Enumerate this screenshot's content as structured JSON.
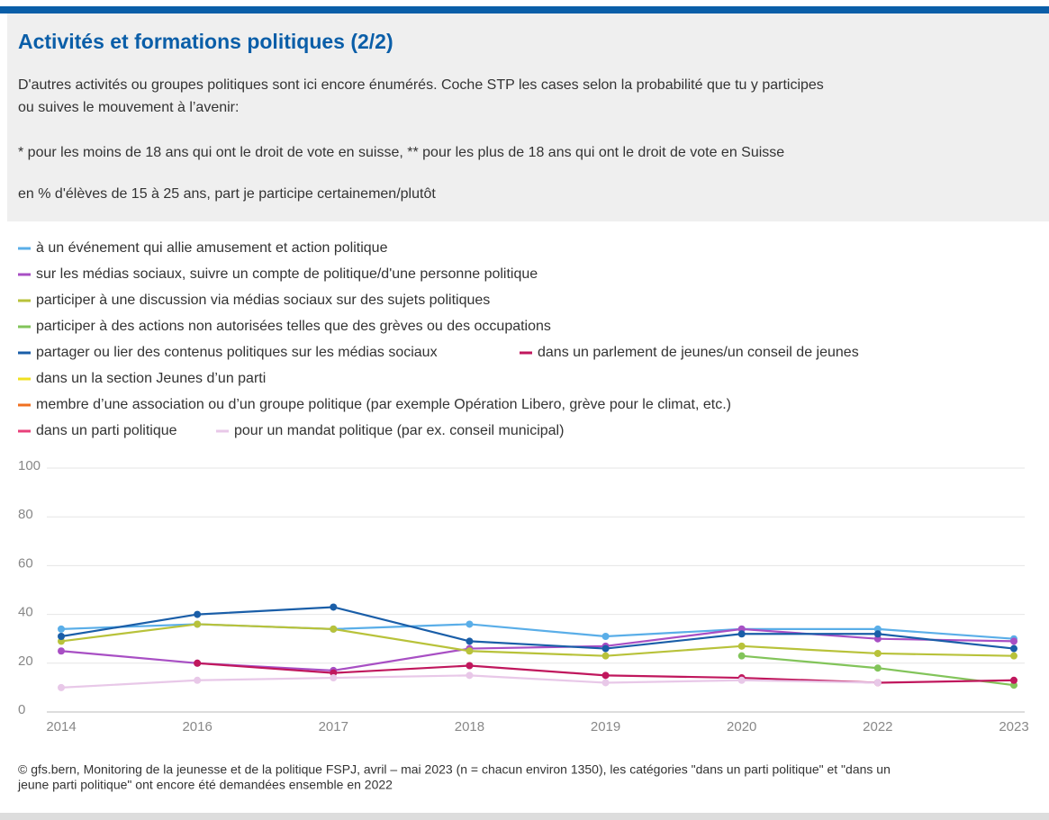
{
  "header": {
    "title": "Activités et formations politiques (2/2)",
    "lines": [
      "D'autres activités ou groupes politiques sont ici encore énumérés. Coche STP les cases selon la probabilité que tu y participes",
      "ou suives le mouvement à l’avenir:",
      "* pour les moins de 18 ans qui ont le droit de vote en suisse, ** pour les plus de 18 ans qui ont le droit de vote en Suisse",
      "en % d'élèves de 15 à 25 ans, part je participe certainemen/plutôt"
    ]
  },
  "chart_data": {
    "type": "line",
    "categories": [
      "2014",
      "2016",
      "2017",
      "2018",
      "2019",
      "2020",
      "2022",
      "2023"
    ],
    "ylim": [
      0,
      100
    ],
    "yticks": [
      0,
      20,
      40,
      60,
      80,
      100
    ],
    "grid": true,
    "series": [
      {
        "name": "à un événement qui allie amusement et action politique",
        "color": "#5aaee8",
        "values": [
          34,
          36,
          34,
          36,
          31,
          34,
          34,
          30
        ]
      },
      {
        "name": "sur les médias sociaux, suivre un compte de politique/d'une personne politique",
        "color": "#a84fc4",
        "values": [
          25,
          20,
          17,
          26,
          27,
          34,
          30,
          29
        ]
      },
      {
        "name": "participer à une discussion via médias sociaux sur des sujets politiques",
        "color": "#b8c23a",
        "values": [
          29,
          36,
          34,
          25,
          23,
          27,
          24,
          23
        ]
      },
      {
        "name": "participer à des actions non autorisées telles que des grèves ou des occupations",
        "color": "#82c45a",
        "values": [
          null,
          null,
          null,
          null,
          null,
          23,
          18,
          11
        ]
      },
      {
        "name": "partager ou lier des contenus politiques sur les médias sociaux",
        "color": "#1a5ea8",
        "values": [
          31,
          40,
          43,
          29,
          26,
          32,
          32,
          26
        ]
      },
      {
        "name": "dans un parlement de jeunes/un conseil de jeunes",
        "color": "#c0175d",
        "values": [
          null,
          20,
          16,
          19,
          15,
          14,
          12,
          13
        ]
      },
      {
        "name": "dans un la section Jeunes d’un parti",
        "color": "#f0e020",
        "values": [
          null,
          null,
          null,
          null,
          null,
          null,
          null,
          null
        ]
      },
      {
        "name": "membre d’une association ou d’un groupe politique (par exemple Opération Libero, grève pour le climat, etc.)",
        "color": "#f07020",
        "values": [
          null,
          null,
          null,
          null,
          null,
          null,
          null,
          null
        ]
      },
      {
        "name": "dans un parti politique",
        "color": "#e8407a",
        "values": [
          null,
          null,
          null,
          null,
          null,
          null,
          null,
          null
        ]
      },
      {
        "name": "pour un mandat politique (par ex. conseil municipal)",
        "color": "#e8c8e8",
        "values": [
          10,
          13,
          14,
          15,
          12,
          13,
          12,
          null
        ]
      }
    ]
  },
  "source": [
    "© gfs.bern, Monitoring de la jeunesse et de la politique FSPJ, avril – mai 2023 (n = chacun environ 1350), les catégories \"dans un parti politique\" et \"dans un",
    "jeune parti politique\" ont encore été demandées ensemble en 2022"
  ]
}
